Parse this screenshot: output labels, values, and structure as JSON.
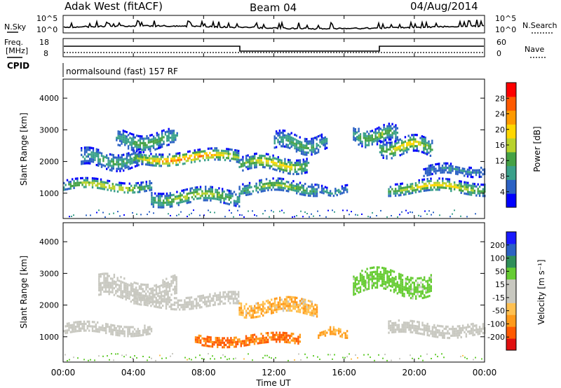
{
  "header": {
    "station": "Adak West (fitACF)",
    "beam": "Beam 04",
    "date": "04/Aug/2014"
  },
  "noise_panel": {
    "left_label": "N.Sky",
    "right_label": "N.Search",
    "left_ticks": [
      "10^5",
      "10^0"
    ],
    "right_ticks": [
      "10^5",
      "10^0"
    ]
  },
  "freq_panel": {
    "left_label_1": "Freq.",
    "left_label_2": "[MHz]",
    "left_ticks": [
      "18",
      "8"
    ],
    "right_label": "Nave",
    "right_ticks": [
      "60",
      "0"
    ]
  },
  "cpid": {
    "label": "CPID",
    "text": "normalsound (fast) 157 RF"
  },
  "x_axis": {
    "title": "Time UT",
    "ticks": [
      "00:00",
      "04:00",
      "08:00",
      "12:00",
      "16:00",
      "20:00",
      "00:00"
    ]
  },
  "colors": {
    "power": [
      "#0000ff",
      "#2c62c4",
      "#3aa08a",
      "#45a245",
      "#b8d22c",
      "#ffd700",
      "#ff9a00",
      "#ff5a00",
      "#ff0000"
    ],
    "velocity": [
      "#e01010",
      "#ff5a00",
      "#ff9a1a",
      "#ffc050",
      "#c8c8c0",
      "#c8c8c0",
      "#66cc33",
      "#2f8f5a",
      "#2c62c4",
      "#1a1aff"
    ],
    "noise_line": "#000000"
  },
  "chart_data": [
    {
      "type": "heatmap",
      "title": "Power",
      "ylabel": "Slant Range [km]",
      "xlabel": "",
      "xlim": [
        0,
        24
      ],
      "ylim": [
        200,
        4600
      ],
      "y_ticks": [
        "1000",
        "2000",
        "3000",
        "4000"
      ],
      "y_tick_values": [
        1000,
        2000,
        3000,
        4000
      ],
      "colorbar": {
        "label": "Power [dB]",
        "ticks": [
          "4",
          "8",
          "12",
          "16",
          "20",
          "24",
          "28"
        ],
        "range": [
          0,
          32
        ]
      },
      "regions": [
        {
          "t0": 0.0,
          "t1": 5.0,
          "r_center": 1250,
          "r_width": 350,
          "peak": 18
        },
        {
          "t0": 1.0,
          "t1": 4.5,
          "r_center": 2100,
          "r_width": 500,
          "peak": 10
        },
        {
          "t0": 3.0,
          "t1": 6.5,
          "r_center": 2700,
          "r_width": 500,
          "peak": 12
        },
        {
          "t0": 4.0,
          "t1": 10.0,
          "r_center": 2150,
          "r_width": 400,
          "peak": 26
        },
        {
          "t0": 5.0,
          "t1": 10.0,
          "r_center": 900,
          "r_width": 450,
          "peak": 16
        },
        {
          "t0": 10.0,
          "t1": 14.5,
          "r_center": 1200,
          "r_width": 400,
          "peak": 14
        },
        {
          "t0": 10.0,
          "t1": 14.0,
          "r_center": 1950,
          "r_width": 450,
          "peak": 20
        },
        {
          "t0": 12.0,
          "t1": 15.0,
          "r_center": 2600,
          "r_width": 550,
          "peak": 10
        },
        {
          "t0": 14.5,
          "t1": 16.2,
          "r_center": 1100,
          "r_width": 250,
          "peak": 8
        },
        {
          "t0": 16.5,
          "t1": 19.0,
          "r_center": 2850,
          "r_width": 500,
          "peak": 14
        },
        {
          "t0": 18.0,
          "t1": 21.0,
          "r_center": 2500,
          "r_width": 500,
          "peak": 20
        },
        {
          "t0": 18.5,
          "t1": 24.0,
          "r_center": 1200,
          "r_width": 400,
          "peak": 20
        },
        {
          "t0": 20.5,
          "t1": 24.0,
          "r_center": 1750,
          "r_width": 300,
          "peak": 6
        }
      ]
    },
    {
      "type": "heatmap",
      "title": "Velocity",
      "ylabel": "Slant Range [km]",
      "xlabel": "Time UT",
      "xlim": [
        0,
        24
      ],
      "ylim": [
        200,
        4600
      ],
      "y_ticks": [
        "1000",
        "2000",
        "3000",
        "4000"
      ],
      "y_tick_values": [
        1000,
        2000,
        3000,
        4000
      ],
      "colorbar": {
        "label": "Velocity [m s⁻¹]",
        "ticks": [
          "200",
          "100",
          "50",
          "15",
          "-15",
          "-50",
          "-100",
          "-200"
        ]
      },
      "regions": [
        {
          "t0": 0.0,
          "t1": 5.0,
          "r_center": 1250,
          "r_width": 350,
          "velocity": 0
        },
        {
          "t0": 2.0,
          "t1": 6.5,
          "r_center": 2500,
          "r_width": 700,
          "velocity": 0
        },
        {
          "t0": 4.0,
          "t1": 10.0,
          "r_center": 2150,
          "r_width": 400,
          "velocity": 0
        },
        {
          "t0": 7.5,
          "t1": 13.5,
          "r_center": 900,
          "r_width": 350,
          "velocity": -90
        },
        {
          "t0": 10.0,
          "t1": 14.5,
          "r_center": 1950,
          "r_width": 450,
          "velocity": -30
        },
        {
          "t0": 14.5,
          "t1": 16.2,
          "r_center": 1150,
          "r_width": 250,
          "velocity": -40
        },
        {
          "t0": 16.5,
          "t1": 21.0,
          "r_center": 2700,
          "r_width": 700,
          "velocity": 30
        },
        {
          "t0": 18.5,
          "t1": 24.0,
          "r_center": 1250,
          "r_width": 400,
          "velocity": 0
        }
      ]
    }
  ]
}
